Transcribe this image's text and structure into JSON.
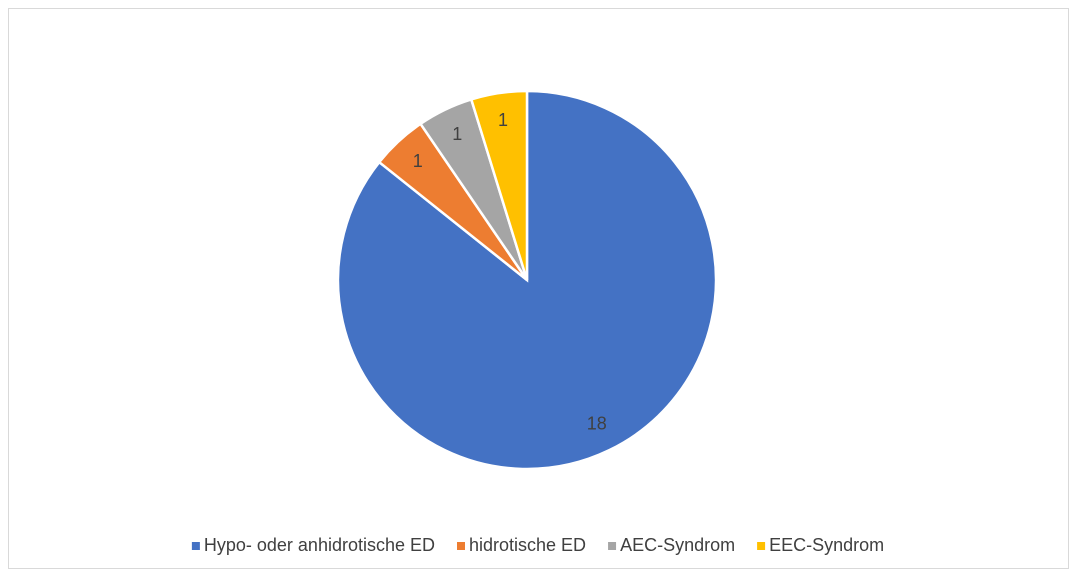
{
  "chart_data": {
    "type": "pie",
    "categories": [
      "Hypo- oder anhidrotische ED",
      "hidrotische ED",
      "AEC-Syndrom",
      "EEC-Syndrom"
    ],
    "values": [
      18,
      1,
      1,
      1
    ],
    "colors": [
      "#4472c4",
      "#ed7d31",
      "#a5a5a5",
      "#ffc000"
    ],
    "legend": "bottom"
  }
}
